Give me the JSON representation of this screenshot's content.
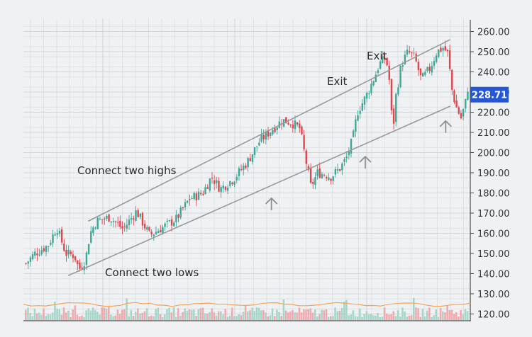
{
  "price_label": "228.71",
  "chart_data": {
    "type": "candlestick",
    "title": "",
    "xlabel": "",
    "ylabel": "",
    "ylim": [
      117,
      263
    ],
    "y_ticks": [
      "260.00",
      "250.00",
      "240.00",
      "230.00",
      "220.00",
      "210.00",
      "200.00",
      "190.00",
      "180.00",
      "170.00",
      "160.00",
      "150.00",
      "140.00",
      "130.00",
      "120.00"
    ],
    "grid": true,
    "last_price": 228.71,
    "annotations": [
      {
        "text": "Connect two highs"
      },
      {
        "text": "Connect two lows"
      },
      {
        "text": "Exit"
      },
      {
        "text": "Exit"
      }
    ],
    "trend_lines": [
      {
        "name": "upper",
        "from": [
          0.145,
          166
        ],
        "to": [
          0.955,
          256
        ]
      },
      {
        "name": "lower",
        "from": [
          0.1,
          139
        ],
        "to": [
          0.955,
          223
        ]
      }
    ],
    "bounce_markers": [
      0.555,
      0.765,
      0.945
    ],
    "price_path": [
      [
        0.0,
        145
      ],
      [
        0.02,
        150
      ],
      [
        0.05,
        154
      ],
      [
        0.07,
        163
      ],
      [
        0.09,
        150
      ],
      [
        0.11,
        149
      ],
      [
        0.12,
        142
      ],
      [
        0.135,
        147
      ],
      [
        0.145,
        160
      ],
      [
        0.16,
        166
      ],
      [
        0.19,
        168
      ],
      [
        0.22,
        162
      ],
      [
        0.25,
        171
      ],
      [
        0.28,
        159
      ],
      [
        0.31,
        163
      ],
      [
        0.34,
        167
      ],
      [
        0.37,
        177
      ],
      [
        0.4,
        180
      ],
      [
        0.42,
        188
      ],
      [
        0.44,
        182
      ],
      [
        0.47,
        187
      ],
      [
        0.5,
        195
      ],
      [
        0.53,
        206
      ],
      [
        0.56,
        212
      ],
      [
        0.58,
        216
      ],
      [
        0.6,
        215
      ],
      [
        0.62,
        212
      ],
      [
        0.63,
        200
      ],
      [
        0.645,
        183
      ],
      [
        0.66,
        190
      ],
      [
        0.68,
        189
      ],
      [
        0.69,
        188
      ],
      [
        0.71,
        192
      ],
      [
        0.725,
        197
      ],
      [
        0.74,
        207
      ],
      [
        0.75,
        220
      ],
      [
        0.77,
        228
      ],
      [
        0.79,
        238
      ],
      [
        0.8,
        244
      ],
      [
        0.815,
        247
      ],
      [
        0.825,
        232
      ],
      [
        0.83,
        206
      ],
      [
        0.835,
        225
      ],
      [
        0.85,
        244
      ],
      [
        0.865,
        250
      ],
      [
        0.88,
        247
      ],
      [
        0.895,
        236
      ],
      [
        0.915,
        242
      ],
      [
        0.93,
        250
      ],
      [
        0.945,
        252
      ],
      [
        0.955,
        249
      ],
      [
        0.965,
        230
      ],
      [
        0.975,
        222
      ],
      [
        0.985,
        217
      ],
      [
        0.995,
        225
      ],
      [
        1.0,
        232
      ]
    ],
    "volume_range": [
      120,
      132
    ]
  }
}
